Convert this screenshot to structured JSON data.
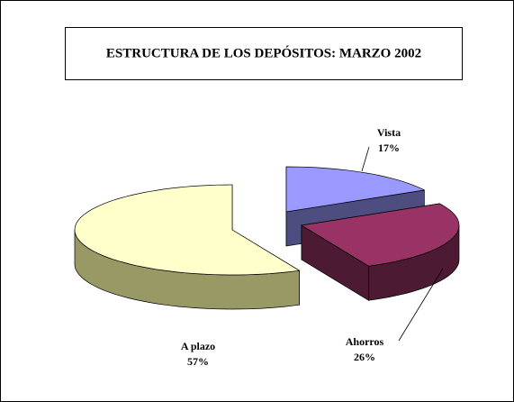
{
  "chart_data": {
    "type": "pie",
    "title": "ESTRUCTURA DE LOS DEPÓSITOS: MARZO 2002",
    "categories": [
      "Vista",
      "Ahorros",
      "A plazo"
    ],
    "values": [
      17,
      26,
      57
    ],
    "value_labels": [
      "17%",
      "26%",
      "57%"
    ],
    "colors": [
      "#9999ff",
      "#993366",
      "#ffffcc"
    ],
    "side_colors": [
      "#4d4d80",
      "#4d1a33",
      "#999966"
    ]
  }
}
